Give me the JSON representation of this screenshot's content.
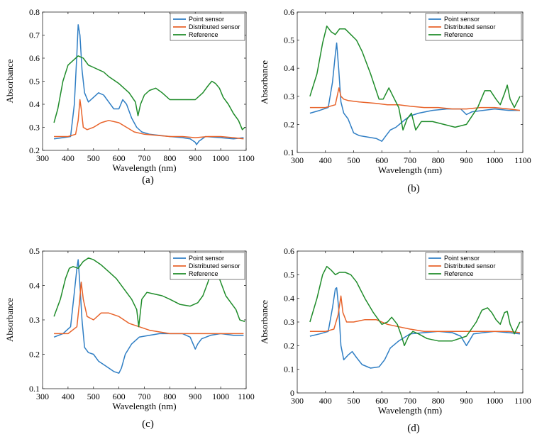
{
  "colors": {
    "point": "#2f7ec4",
    "distributed": "#e8632a",
    "reference": "#1f8c2a"
  },
  "chart_data": [
    {
      "panel": "(a)",
      "type": "line",
      "xlabel": "Wavelength (nm)",
      "ylabel": "Absorbance",
      "xlim": [
        300,
        1100
      ],
      "ylim": [
        0.2,
        0.8
      ],
      "xticks": [
        "300",
        "400",
        "500",
        "600",
        "700",
        "800",
        "900",
        "1000",
        "1100"
      ],
      "yticks": [
        "0.2",
        "0.3",
        "0.4",
        "0.5",
        "0.6",
        "0.7",
        "0.8"
      ],
      "legend_position": "top-right",
      "series": [
        {
          "name": "Point sensor",
          "color_key": "point",
          "x": [
            345,
            380,
            410,
            425,
            435,
            440,
            447,
            455,
            465,
            480,
            500,
            520,
            540,
            560,
            580,
            600,
            615,
            630,
            650,
            670,
            690,
            720,
            760,
            800,
            850,
            880,
            900,
            905,
            915,
            940,
            1000,
            1050,
            1090
          ],
          "y": [
            0.25,
            0.255,
            0.26,
            0.4,
            0.62,
            0.745,
            0.7,
            0.55,
            0.45,
            0.41,
            0.43,
            0.45,
            0.44,
            0.41,
            0.38,
            0.38,
            0.42,
            0.4,
            0.34,
            0.3,
            0.28,
            0.27,
            0.265,
            0.26,
            0.255,
            0.25,
            0.235,
            0.225,
            0.24,
            0.26,
            0.255,
            0.25,
            0.255
          ]
        },
        {
          "name": "Distributed sensor",
          "color_key": "distributed",
          "x": [
            345,
            400,
            430,
            440,
            447,
            452,
            460,
            475,
            500,
            530,
            560,
            600,
            630,
            660,
            700,
            750,
            800,
            850,
            900,
            950,
            1000,
            1050,
            1090
          ],
          "y": [
            0.26,
            0.26,
            0.27,
            0.33,
            0.42,
            0.38,
            0.3,
            0.29,
            0.3,
            0.32,
            0.33,
            0.32,
            0.3,
            0.28,
            0.27,
            0.265,
            0.26,
            0.26,
            0.255,
            0.26,
            0.26,
            0.255,
            0.25
          ]
        },
        {
          "name": "Reference",
          "color_key": "reference",
          "x": [
            345,
            360,
            380,
            400,
            420,
            440,
            460,
            480,
            500,
            520,
            540,
            560,
            600,
            640,
            665,
            675,
            685,
            700,
            720,
            745,
            770,
            800,
            850,
            900,
            930,
            950,
            965,
            980,
            995,
            1010,
            1030,
            1050,
            1070,
            1085,
            1095
          ],
          "y": [
            0.32,
            0.38,
            0.5,
            0.57,
            0.59,
            0.61,
            0.6,
            0.57,
            0.56,
            0.55,
            0.54,
            0.52,
            0.49,
            0.45,
            0.41,
            0.35,
            0.4,
            0.44,
            0.46,
            0.47,
            0.45,
            0.42,
            0.42,
            0.42,
            0.45,
            0.48,
            0.5,
            0.49,
            0.47,
            0.43,
            0.4,
            0.36,
            0.33,
            0.29,
            0.3
          ]
        }
      ]
    },
    {
      "panel": "(b)",
      "type": "line",
      "xlabel": "Wavelength (nm)",
      "ylabel": "Absorbance",
      "xlim": [
        300,
        1100
      ],
      "ylim": [
        0.1,
        0.6
      ],
      "xticks": [
        "300",
        "400",
        "500",
        "600",
        "700",
        "800",
        "900",
        "1000",
        "1100"
      ],
      "yticks": [
        "0.1",
        "0.2",
        "0.3",
        "0.4",
        "0.5",
        "0.6"
      ],
      "legend_position": "top-right",
      "series": [
        {
          "name": "Point sensor",
          "color_key": "point",
          "x": [
            345,
            380,
            410,
            425,
            435,
            440,
            447,
            455,
            465,
            480,
            500,
            520,
            550,
            580,
            600,
            615,
            630,
            650,
            680,
            700,
            730,
            780,
            830,
            880,
            900,
            920,
            960,
            1000,
            1050,
            1090
          ],
          "y": [
            0.24,
            0.25,
            0.26,
            0.35,
            0.45,
            0.49,
            0.4,
            0.28,
            0.24,
            0.22,
            0.17,
            0.16,
            0.155,
            0.15,
            0.14,
            0.16,
            0.18,
            0.19,
            0.215,
            0.23,
            0.24,
            0.25,
            0.255,
            0.255,
            0.235,
            0.245,
            0.25,
            0.255,
            0.25,
            0.25
          ]
        },
        {
          "name": "Distributed sensor",
          "color_key": "distributed",
          "x": [
            345,
            400,
            435,
            448,
            455,
            465,
            480,
            520,
            580,
            620,
            660,
            700,
            750,
            800,
            850,
            900,
            950,
            1000,
            1050,
            1090
          ],
          "y": [
            0.26,
            0.26,
            0.27,
            0.33,
            0.3,
            0.29,
            0.285,
            0.28,
            0.275,
            0.27,
            0.27,
            0.265,
            0.26,
            0.26,
            0.255,
            0.255,
            0.26,
            0.26,
            0.255,
            0.25
          ]
        },
        {
          "name": "Reference",
          "color_key": "reference",
          "x": [
            345,
            370,
            390,
            405,
            420,
            435,
            450,
            470,
            490,
            510,
            530,
            560,
            590,
            605,
            625,
            640,
            660,
            675,
            690,
            705,
            720,
            740,
            780,
            820,
            860,
            900,
            940,
            965,
            985,
            1005,
            1020,
            1035,
            1045,
            1055,
            1070,
            1090
          ],
          "y": [
            0.3,
            0.38,
            0.49,
            0.55,
            0.53,
            0.52,
            0.54,
            0.54,
            0.52,
            0.5,
            0.46,
            0.38,
            0.29,
            0.29,
            0.33,
            0.3,
            0.26,
            0.18,
            0.22,
            0.24,
            0.18,
            0.21,
            0.21,
            0.2,
            0.19,
            0.2,
            0.26,
            0.32,
            0.32,
            0.29,
            0.27,
            0.31,
            0.34,
            0.29,
            0.26,
            0.3
          ]
        }
      ]
    },
    {
      "panel": "(c)",
      "type": "line",
      "xlabel": "Wavelength (nm)",
      "ylabel": "Absorbance",
      "xlim": [
        300,
        1100
      ],
      "ylim": [
        0.1,
        0.5
      ],
      "xticks": [
        "300",
        "400",
        "500",
        "600",
        "700",
        "800",
        "900",
        "1000",
        "1100"
      ],
      "yticks": [
        "0.1",
        "0.2",
        "0.3",
        "0.4",
        "0.5"
      ],
      "legend_position": "top-right",
      "series": [
        {
          "name": "Point sensor",
          "color_key": "point",
          "x": [
            345,
            380,
            410,
            425,
            435,
            440,
            447,
            455,
            465,
            480,
            500,
            520,
            540,
            560,
            580,
            600,
            610,
            625,
            650,
            680,
            720,
            760,
            800,
            850,
            880,
            900,
            910,
            925,
            960,
            1000,
            1050,
            1090
          ],
          "y": [
            0.25,
            0.26,
            0.28,
            0.38,
            0.45,
            0.475,
            0.4,
            0.3,
            0.22,
            0.205,
            0.2,
            0.18,
            0.17,
            0.16,
            0.15,
            0.145,
            0.16,
            0.2,
            0.23,
            0.25,
            0.255,
            0.26,
            0.26,
            0.26,
            0.25,
            0.215,
            0.23,
            0.245,
            0.255,
            0.26,
            0.255,
            0.255
          ]
        },
        {
          "name": "Distributed sensor",
          "color_key": "distributed",
          "x": [
            345,
            400,
            435,
            445,
            452,
            460,
            475,
            500,
            530,
            560,
            600,
            640,
            680,
            720,
            760,
            800,
            850,
            900,
            950,
            1000,
            1050,
            1090
          ],
          "y": [
            0.26,
            0.26,
            0.28,
            0.35,
            0.41,
            0.36,
            0.31,
            0.3,
            0.32,
            0.32,
            0.31,
            0.29,
            0.28,
            0.27,
            0.265,
            0.26,
            0.26,
            0.26,
            0.26,
            0.26,
            0.26,
            0.26
          ]
        },
        {
          "name": "Reference",
          "color_key": "reference",
          "x": [
            345,
            370,
            390,
            405,
            420,
            440,
            460,
            480,
            500,
            530,
            560,
            590,
            620,
            650,
            670,
            678,
            690,
            710,
            740,
            770,
            800,
            840,
            880,
            910,
            930,
            950,
            965,
            975,
            990,
            1005,
            1020,
            1040,
            1060,
            1075,
            1095
          ],
          "y": [
            0.31,
            0.36,
            0.42,
            0.45,
            0.455,
            0.45,
            0.47,
            0.48,
            0.475,
            0.46,
            0.44,
            0.42,
            0.39,
            0.36,
            0.33,
            0.28,
            0.36,
            0.38,
            0.375,
            0.37,
            0.36,
            0.345,
            0.34,
            0.35,
            0.37,
            0.41,
            0.45,
            0.45,
            0.43,
            0.4,
            0.37,
            0.35,
            0.33,
            0.3,
            0.295
          ]
        }
      ]
    },
    {
      "panel": "(d)",
      "type": "line",
      "xlabel": "Wavelength (nm)",
      "ylabel": "Absorbance",
      "xlim": [
        300,
        1100
      ],
      "ylim": [
        0,
        0.6
      ],
      "xticks": [
        "300",
        "400",
        "500",
        "600",
        "700",
        "800",
        "900",
        "1000",
        "1100"
      ],
      "yticks": [
        "0",
        "0.1",
        "0.2",
        "0.3",
        "0.4",
        "0.5",
        "0.6"
      ],
      "legend_position": "top-right",
      "series": [
        {
          "name": "Point sensor",
          "color_key": "point",
          "x": [
            345,
            380,
            410,
            425,
            435,
            440,
            447,
            455,
            465,
            480,
            495,
            510,
            530,
            560,
            590,
            610,
            630,
            660,
            700,
            750,
            800,
            850,
            880,
            900,
            910,
            925,
            960,
            1000,
            1050,
            1090
          ],
          "y": [
            0.24,
            0.25,
            0.26,
            0.36,
            0.44,
            0.445,
            0.36,
            0.2,
            0.14,
            0.16,
            0.175,
            0.15,
            0.12,
            0.105,
            0.11,
            0.14,
            0.19,
            0.22,
            0.25,
            0.255,
            0.26,
            0.255,
            0.24,
            0.2,
            0.22,
            0.25,
            0.255,
            0.26,
            0.255,
            0.25
          ]
        },
        {
          "name": "Distributed sensor",
          "color_key": "distributed",
          "x": [
            345,
            400,
            430,
            445,
            455,
            462,
            475,
            500,
            540,
            580,
            620,
            660,
            700,
            750,
            800,
            850,
            900,
            950,
            1000,
            1050,
            1090
          ],
          "y": [
            0.26,
            0.26,
            0.27,
            0.33,
            0.41,
            0.34,
            0.3,
            0.3,
            0.31,
            0.31,
            0.29,
            0.28,
            0.27,
            0.26,
            0.26,
            0.26,
            0.26,
            0.26,
            0.26,
            0.26,
            0.255
          ]
        },
        {
          "name": "Reference",
          "color_key": "reference",
          "x": [
            345,
            370,
            390,
            405,
            420,
            435,
            450,
            470,
            490,
            510,
            540,
            570,
            600,
            620,
            635,
            655,
            670,
            680,
            695,
            710,
            730,
            760,
            800,
            850,
            900,
            935,
            955,
            975,
            990,
            1005,
            1020,
            1035,
            1045,
            1055,
            1070,
            1090
          ],
          "y": [
            0.3,
            0.4,
            0.5,
            0.535,
            0.52,
            0.5,
            0.51,
            0.51,
            0.5,
            0.47,
            0.4,
            0.34,
            0.29,
            0.3,
            0.32,
            0.29,
            0.24,
            0.2,
            0.24,
            0.26,
            0.25,
            0.23,
            0.22,
            0.22,
            0.24,
            0.3,
            0.35,
            0.36,
            0.34,
            0.31,
            0.29,
            0.34,
            0.345,
            0.29,
            0.25,
            0.3
          ]
        }
      ]
    }
  ]
}
